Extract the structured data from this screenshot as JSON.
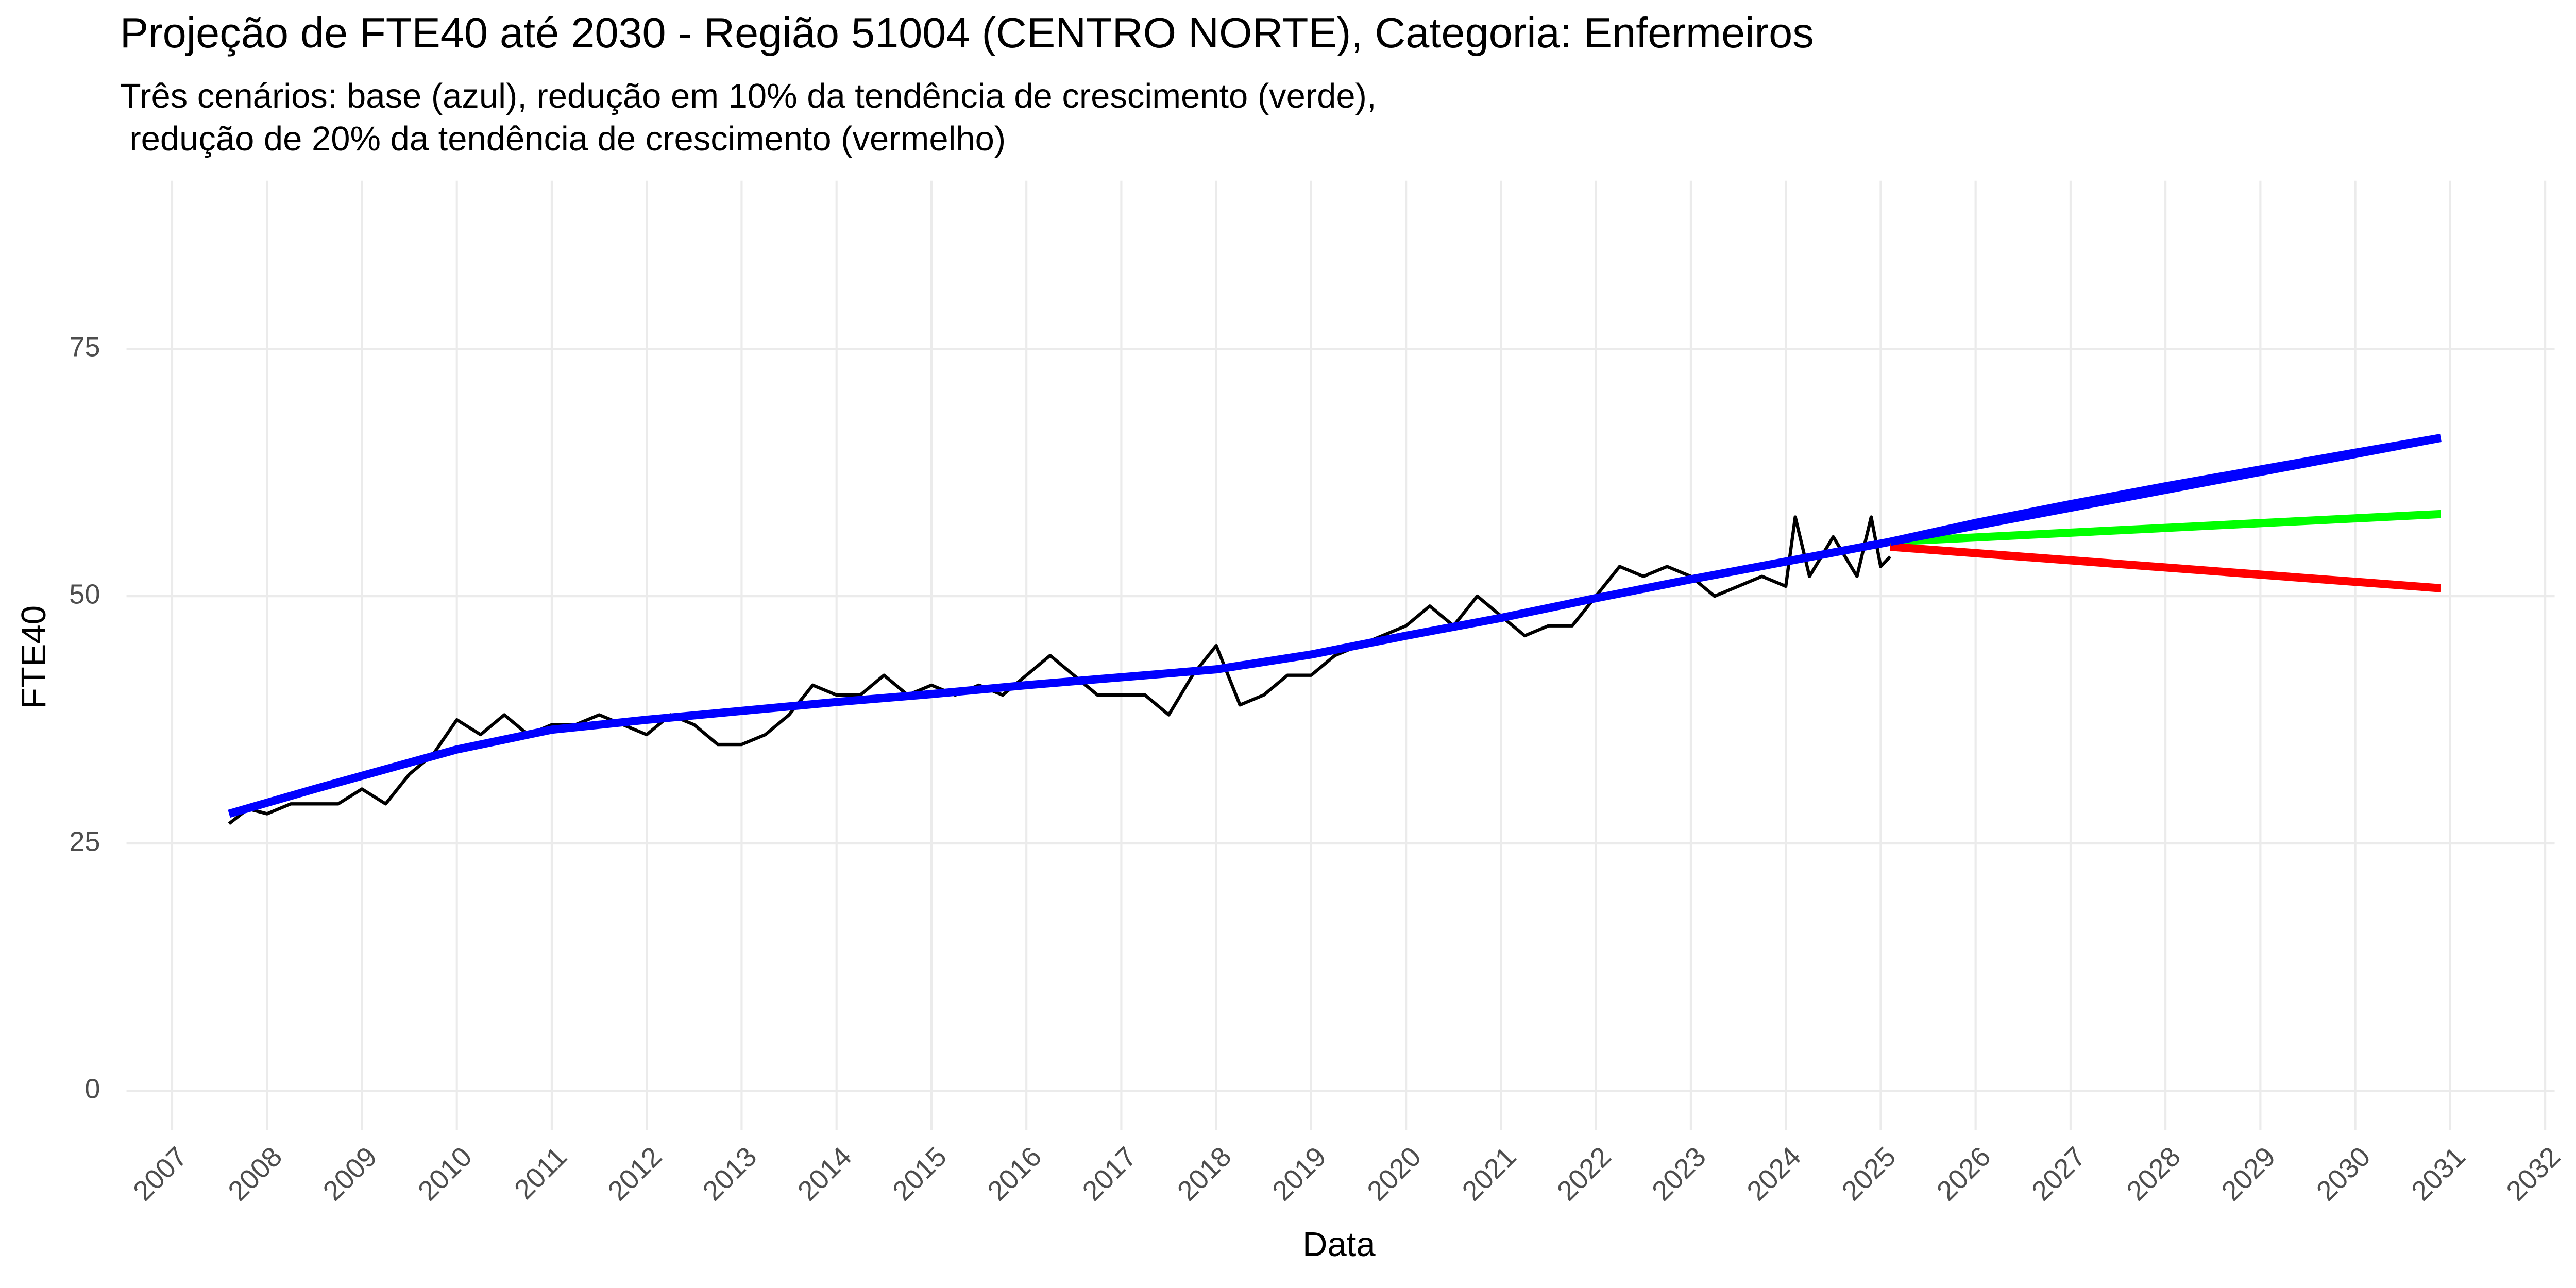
{
  "chart_data": {
    "type": "line",
    "title": "Projeção de FTE40 até 2030 - Região 51004 (CENTRO NORTE), Categoria: Enfermeiros",
    "subtitle": [
      "Três cenários: base (azul), redução em 10% da tendência de crescimento (verde),",
      " redução de 20% da tendência de crescimento (vermelho)"
    ],
    "x_label": "Data",
    "y_label": "FTE40",
    "xlim": [
      2006.52,
      2032.1
    ],
    "xticks": [
      2007,
      2008,
      2009,
      2010,
      2011,
      2012,
      2013,
      2014,
      2015,
      2016,
      2017,
      2018,
      2019,
      2020,
      2021,
      2022,
      2023,
      2024,
      2025,
      2026,
      2027,
      2028,
      2029,
      2030,
      2031,
      2032
    ],
    "ylim": [
      -4,
      92
    ],
    "yticks": [
      0,
      25,
      50,
      75
    ],
    "grid": true,
    "series": [
      {
        "color": "#000000",
        "width": 2,
        "x": [
          2007.6,
          2007.8,
          2008.0,
          2008.25,
          2008.5,
          2008.75,
          2009.0,
          2009.25,
          2009.5,
          2009.75,
          2010.0,
          2010.25,
          2010.5,
          2010.75,
          2011.0,
          2011.25,
          2011.5,
          2011.75,
          2012.0,
          2012.25,
          2012.5,
          2012.75,
          2013.0,
          2013.25,
          2013.5,
          2013.75,
          2014.0,
          2014.25,
          2014.5,
          2014.75,
          2015.0,
          2015.25,
          2015.5,
          2015.75,
          2016.0,
          2016.25,
          2016.5,
          2016.75,
          2017.0,
          2017.25,
          2017.5,
          2017.75,
          2018.0,
          2018.25,
          2018.5,
          2018.75,
          2019.0,
          2019.25,
          2019.5,
          2019.75,
          2020.0,
          2020.25,
          2020.5,
          2020.75,
          2021.0,
          2021.25,
          2021.5,
          2021.75,
          2022.0,
          2022.25,
          2022.5,
          2022.75,
          2023.0,
          2023.25,
          2023.5,
          2023.75,
          2024.0,
          2024.1,
          2024.25,
          2024.5,
          2024.75,
          2024.9,
          2025.0,
          2025.1
        ],
        "values": [
          27,
          28.5,
          28,
          29,
          29,
          29,
          30.5,
          29,
          32,
          34,
          37.5,
          36,
          38,
          36,
          37,
          37,
          38,
          37,
          36,
          38,
          37,
          35,
          35,
          36,
          38,
          41,
          40,
          40,
          42,
          40,
          41,
          40,
          41,
          40,
          42,
          44,
          42,
          40,
          40,
          40,
          38,
          42,
          45,
          39,
          40,
          42,
          42,
          44,
          45,
          46,
          47,
          49,
          47,
          50,
          48,
          46,
          47,
          47,
          50,
          53,
          52,
          53,
          52,
          50,
          51,
          52,
          51,
          58,
          52,
          56,
          52,
          58,
          53,
          54
        ]
      },
      {
        "color": "#0000ff",
        "width": 5,
        "x": [
          2007.6,
          2008.5,
          2009.25,
          2010.0,
          2011.0,
          2012.0,
          2013.0,
          2014.0,
          2015.0,
          2016.0,
          2017.0,
          2018.0,
          2019.0,
          2020.0,
          2021.0,
          2022.0,
          2023.0,
          2024.0,
          2025.1,
          2026.0,
          2027.0,
          2028.0,
          2029.0,
          2030.0,
          2030.9
        ],
        "values": [
          28,
          30.5,
          32.5,
          34.5,
          36.5,
          37.5,
          38.4,
          39.3,
          40.1,
          41,
          41.8,
          42.6,
          44.1,
          46,
          47.8,
          49.8,
          51.7,
          53.5,
          55.5,
          57.4,
          59.3,
          61.1,
          62.8,
          64.5,
          66
        ]
      },
      {
        "color": "#00ff00",
        "width": 5,
        "x": [
          2025.1,
          2030.9
        ],
        "values": [
          55.5,
          58.3
        ]
      },
      {
        "color": "#ff0000",
        "width": 5,
        "x": [
          2025.1,
          2030.9
        ],
        "values": [
          55,
          50.8
        ]
      },
      {
        "color": "#0000ff",
        "width": 5,
        "x": [
          2025.1,
          2030.9
        ],
        "values": [
          55.5,
          66
        ]
      }
    ]
  }
}
